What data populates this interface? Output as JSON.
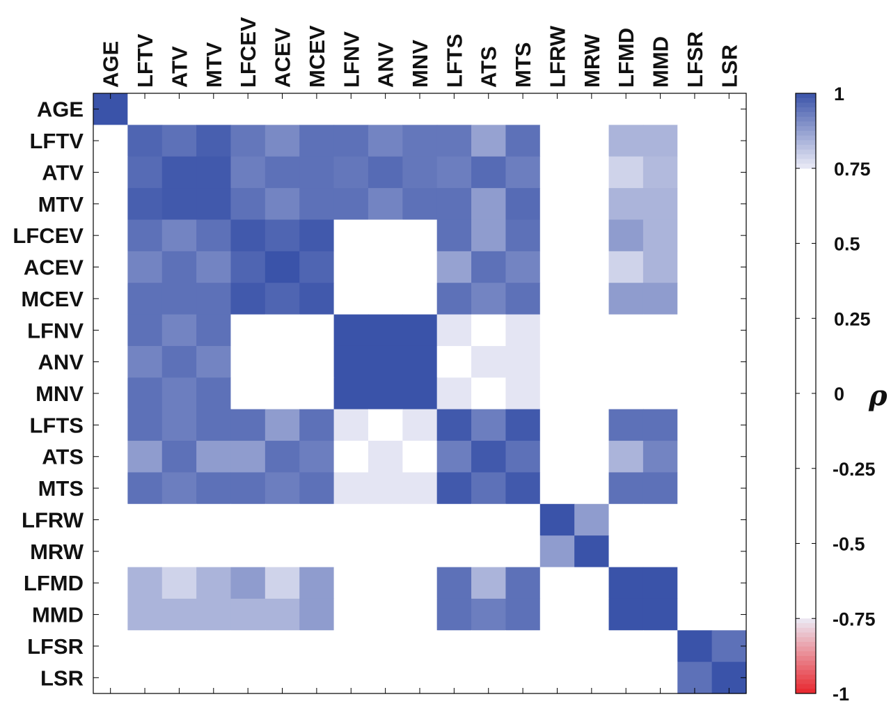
{
  "chart_data": {
    "type": "heatmap",
    "title": "",
    "xlabel": "",
    "ylabel": "",
    "variables": [
      "AGE",
      "LFTV",
      "ATV",
      "MTV",
      "LFCEV",
      "ACEV",
      "MCEV",
      "LFNV",
      "ANV",
      "MNV",
      "LFTS",
      "ATS",
      "MTS",
      "LFRW",
      "MRW",
      "LFMD",
      "MMD",
      "LFSR",
      "LSR"
    ],
    "matrix": [
      [
        1,
        0,
        0,
        0,
        0,
        0,
        0,
        0,
        0,
        0,
        0,
        0,
        0,
        0,
        0,
        0,
        0,
        0,
        0
      ],
      [
        0,
        0.97,
        0.95,
        0.98,
        0.94,
        0.91,
        0.95,
        0.95,
        0.92,
        0.94,
        0.94,
        0.87,
        0.95,
        0,
        0,
        0.84,
        0.84,
        0,
        0
      ],
      [
        0,
        0.96,
        0.99,
        0.99,
        0.93,
        0.95,
        0.95,
        0.94,
        0.96,
        0.94,
        0.93,
        0.96,
        0.93,
        0,
        0,
        0.79,
        0.83,
        0,
        0
      ],
      [
        0,
        0.98,
        0.99,
        0.99,
        0.95,
        0.92,
        0.95,
        0.95,
        0.92,
        0.95,
        0.95,
        0.88,
        0.96,
        0,
        0,
        0.84,
        0.84,
        0,
        0
      ],
      [
        0,
        0.95,
        0.92,
        0.95,
        0.99,
        0.97,
        0.99,
        0,
        0,
        0,
        0.95,
        0.88,
        0.95,
        0,
        0,
        0.88,
        0.84,
        0,
        0
      ],
      [
        0,
        0.92,
        0.95,
        0.92,
        0.97,
        1,
        0.97,
        0,
        0,
        0,
        0.87,
        0.95,
        0.92,
        0,
        0,
        0.79,
        0.84,
        0,
        0
      ],
      [
        0,
        0.95,
        0.95,
        0.95,
        0.99,
        0.97,
        0.99,
        0,
        0,
        0,
        0.95,
        0.92,
        0.95,
        0,
        0,
        0.88,
        0.88,
        0,
        0
      ],
      [
        0,
        0.95,
        0.92,
        0.95,
        0,
        0,
        0,
        1,
        1,
        1,
        0.76,
        0,
        0.76,
        0,
        0,
        0,
        0,
        0,
        0
      ],
      [
        0,
        0.92,
        0.95,
        0.92,
        0,
        0,
        0,
        1,
        1,
        1,
        0,
        0.76,
        0.76,
        0,
        0,
        0,
        0,
        0,
        0
      ],
      [
        0,
        0.95,
        0.93,
        0.95,
        0,
        0,
        0,
        1,
        1,
        1,
        0.76,
        0,
        0.76,
        0,
        0,
        0,
        0,
        0,
        0
      ],
      [
        0,
        0.95,
        0.93,
        0.95,
        0.95,
        0.88,
        0.95,
        0.76,
        0,
        0.76,
        0.99,
        0.93,
        0.99,
        0,
        0,
        0.95,
        0.95,
        0,
        0
      ],
      [
        0,
        0.88,
        0.95,
        0.88,
        0.88,
        0.95,
        0.93,
        0,
        0.76,
        0,
        0.93,
        0.99,
        0.95,
        0,
        0,
        0.84,
        0.92,
        0,
        0
      ],
      [
        0,
        0.95,
        0.93,
        0.95,
        0.95,
        0.93,
        0.95,
        0.76,
        0.76,
        0.76,
        0.99,
        0.95,
        0.99,
        0,
        0,
        0.95,
        0.95,
        0,
        0
      ],
      [
        0,
        0,
        0,
        0,
        0,
        0,
        0,
        0,
        0,
        0,
        0,
        0,
        0,
        1,
        0.88,
        0,
        0,
        0,
        0
      ],
      [
        0,
        0,
        0,
        0,
        0,
        0,
        0,
        0,
        0,
        0,
        0,
        0,
        0,
        0.88,
        1,
        0,
        0,
        0,
        0
      ],
      [
        0,
        0.84,
        0.79,
        0.84,
        0.88,
        0.79,
        0.88,
        0,
        0,
        0,
        0.95,
        0.84,
        0.95,
        0,
        0,
        1,
        1,
        0,
        0
      ],
      [
        0,
        0.84,
        0.84,
        0.84,
        0.84,
        0.84,
        0.88,
        0,
        0,
        0,
        0.95,
        0.93,
        0.95,
        0,
        0,
        1,
        1,
        0,
        0
      ],
      [
        0,
        0,
        0,
        0,
        0,
        0,
        0,
        0,
        0,
        0,
        0,
        0,
        0,
        0,
        0,
        0,
        0,
        1,
        0.95
      ],
      [
        0,
        0,
        0,
        0,
        0,
        0,
        0,
        0,
        0,
        0,
        0,
        0,
        0,
        0,
        0,
        0,
        0,
        0.95,
        1
      ]
    ],
    "colorbar": {
      "label": "ρ",
      "range": [
        -1,
        1
      ],
      "ticks": [
        "1",
        "0.75",
        "0.5",
        "0.25",
        "0",
        "-0.25",
        "-0.5",
        "-0.75",
        "-1"
      ],
      "tick_values": [
        1,
        0.75,
        0.5,
        0.25,
        0,
        -0.25,
        -0.5,
        -0.75,
        -1
      ],
      "positive_color": "#3a53a9",
      "negative_color": "#e8262d",
      "neutral_color": "#ffffff",
      "threshold": 0.75
    }
  }
}
